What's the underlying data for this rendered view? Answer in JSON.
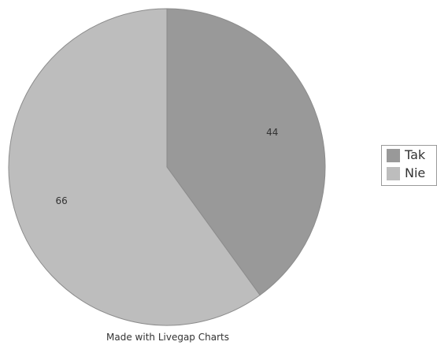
{
  "chart_data": {
    "type": "pie",
    "categories": [
      "Tak",
      "Nie"
    ],
    "values": [
      44,
      66
    ],
    "colors": [
      "#999999",
      "#bdbdbd"
    ],
    "stroke_color": "#8c8c8c",
    "label_color": "#333333",
    "start_position": "top",
    "direction": "clockwise",
    "legend": {
      "position": "right",
      "items": [
        {
          "label": "Tak",
          "color": "#999999"
        },
        {
          "label": "Nie",
          "color": "#bdbdbd"
        }
      ]
    }
  },
  "credit": "Made with Livegap Charts"
}
